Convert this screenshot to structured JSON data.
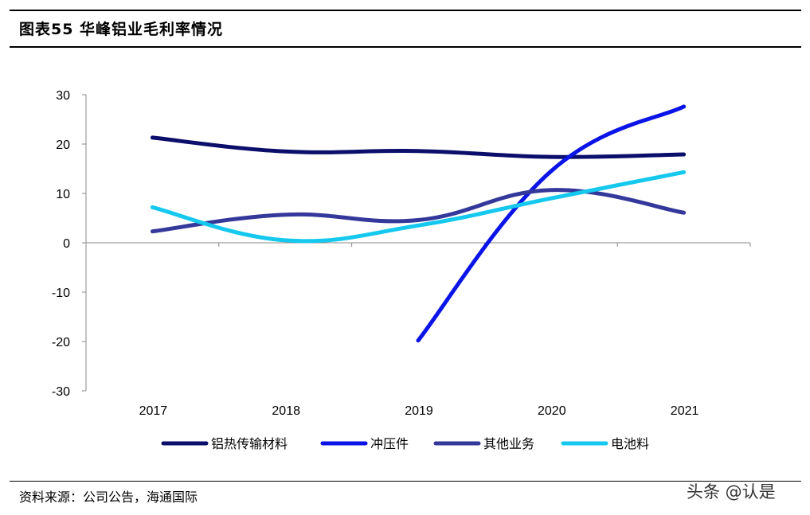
{
  "title": "图表55 华峰铝业毛利率情况",
  "source": "资料来源：公司公告，海通国际",
  "watermark": "头条 @认是",
  "chart_data": {
    "type": "line",
    "categories": [
      "2017",
      "2018",
      "2019",
      "2020",
      "2021"
    ],
    "ylim": [
      -30,
      30
    ],
    "yticks": [
      "30",
      "20",
      "10",
      "0",
      "-10",
      "-20",
      "-30"
    ],
    "yticks_values": [
      30,
      20,
      10,
      0,
      -10,
      -20,
      -30
    ],
    "grid": false,
    "legend_position": "bottom",
    "series": [
      {
        "name": "铝热传输材料",
        "color": "#0B0F6B",
        "values": [
          21.3,
          18.5,
          18.6,
          17.4,
          17.9
        ]
      },
      {
        "name": "冲压件",
        "color": "#0A14E6",
        "values": [
          null,
          null,
          -19.8,
          14.5,
          27.6
        ]
      },
      {
        "name": "其他业务",
        "color": "#34389A",
        "values": [
          2.3,
          5.7,
          4.6,
          10.7,
          6.1
        ]
      },
      {
        "name": "电池料",
        "color": "#14C8EE",
        "values": [
          7.2,
          0.5,
          3.5,
          9.0,
          14.3
        ]
      }
    ]
  }
}
